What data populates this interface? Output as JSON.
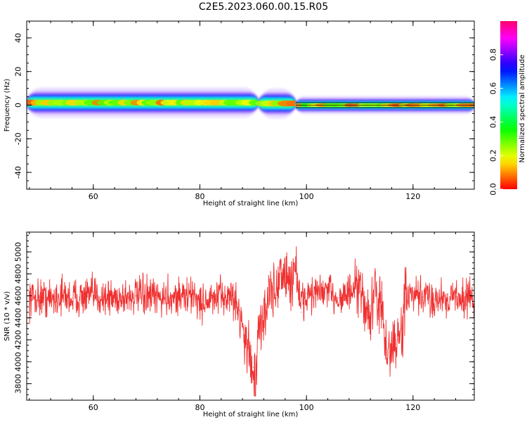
{
  "title": "C2E5.2023.060.00.15.R05",
  "colors": {
    "snr_line": "#f03030",
    "axis": "#000000",
    "background": "#ffffff"
  },
  "chart_data": [
    {
      "type": "heatmap",
      "title": "",
      "xlabel": "Height of straight line (km)",
      "ylabel": "Frequency (Hz)",
      "xlim": [
        47.5,
        131.5
      ],
      "ylim": [
        -50,
        50
      ],
      "xticks": [
        60,
        80,
        100,
        120
      ],
      "yticks": [
        -40,
        -20,
        0,
        20,
        40
      ],
      "grid": false,
      "colorbar": {
        "label": "Normalized spectral amplitude",
        "range": [
          0.0,
          1.0
        ],
        "ticks": [
          0.0,
          0.2,
          0.4,
          0.6,
          0.8
        ],
        "colormap": "hsv"
      },
      "ridge": {
        "description_free": true,
        "segments": [
          {
            "x_start": 47.5,
            "x_end": 91,
            "center_hz": 1.5,
            "halfwidth_hz": 5
          },
          {
            "x_start": 91,
            "x_end": 98,
            "center_hz": 1.0,
            "halfwidth_hz": 5
          },
          {
            "x_start": 98,
            "x_end": 131.5,
            "center_hz": 0.0,
            "halfwidth_hz": 3
          }
        ]
      }
    },
    {
      "type": "line",
      "title": "",
      "xlabel": "Height of straight line (km)",
      "ylabel": "SNR (10 * v/v)",
      "xlim": [
        47.5,
        131.5
      ],
      "ylim": [
        3650,
        5180
      ],
      "xticks": [
        60,
        80,
        100,
        120
      ],
      "yticks": [
        3800,
        4000,
        4200,
        4400,
        4600,
        4800,
        5000
      ],
      "grid": false,
      "series": [
        {
          "x": [
            48,
            50,
            52,
            54,
            56,
            58,
            60,
            62,
            64,
            66,
            68,
            70,
            72,
            74,
            76,
            78,
            79,
            80,
            81,
            82,
            84,
            86,
            87,
            88,
            89,
            90,
            90.5,
            91,
            92,
            93,
            94,
            95,
            96,
            97,
            98,
            99,
            100,
            102,
            104,
            106,
            108,
            110,
            111,
            112,
            113,
            114,
            115,
            116,
            117,
            118,
            118.5,
            120,
            122,
            124,
            126,
            128,
            130,
            131.5
          ],
          "values": [
            4580,
            4590,
            4570,
            4600,
            4580,
            4590,
            4600,
            4590,
            4580,
            4590,
            4600,
            4590,
            4580,
            4590,
            4600,
            4590,
            4620,
            4520,
            4560,
            4550,
            4590,
            4600,
            4500,
            4350,
            4100,
            3950,
            3800,
            4250,
            4400,
            4650,
            4600,
            4800,
            4780,
            4700,
            4900,
            4450,
            4620,
            4620,
            4640,
            4580,
            4620,
            4640,
            4520,
            4400,
            4650,
            4500,
            4080,
            4120,
            4200,
            4240,
            4620,
            4580,
            4590,
            4570,
            4580,
            4590,
            4580,
            4590
          ]
        }
      ]
    }
  ]
}
